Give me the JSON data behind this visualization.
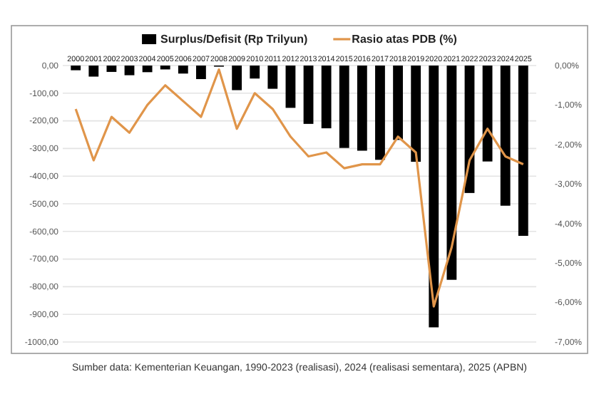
{
  "chart_data": {
    "type": "bar",
    "categories": [
      "2000",
      "2001",
      "2002",
      "2003",
      "2004",
      "2005",
      "2006",
      "2007",
      "2008",
      "2009",
      "2010",
      "2011",
      "2012",
      "2013",
      "2014",
      "2015",
      "2016",
      "2017",
      "2018",
      "2019",
      "2020",
      "2021",
      "2022",
      "2023",
      "2024",
      "2025"
    ],
    "series": [
      {
        "name": "Surplus/Defisit (Rp Trilyun)",
        "color": "#000000",
        "values": [
          -17,
          -40,
          -23,
          -35,
          -24,
          -14,
          -29,
          -49,
          -4,
          -89,
          -47,
          -84,
          -153,
          -211,
          -227,
          -298,
          -308,
          -341,
          -269,
          -348,
          -947,
          -775,
          -461,
          -347,
          -507,
          -616
        ]
      },
      {
        "name": "Rasio atas PDB (%)",
        "type": "line",
        "axis": "y2",
        "color": "#e0954a",
        "values": [
          -1.1,
          -2.4,
          -1.3,
          -1.7,
          -1.0,
          -0.5,
          -0.9,
          -1.3,
          -0.1,
          -1.6,
          -0.7,
          -1.1,
          -1.8,
          -2.3,
          -2.2,
          -2.6,
          -2.5,
          -2.5,
          -1.8,
          -2.2,
          -6.1,
          -4.6,
          -2.4,
          -1.6,
          -2.3,
          -2.5
        ]
      }
    ],
    "ylim": [
      -1000,
      0
    ],
    "yticks": [
      {
        "value": 0,
        "label": "0,00"
      },
      {
        "value": -100,
        "label": "-100,00"
      },
      {
        "value": -200,
        "label": "-200,00"
      },
      {
        "value": -300,
        "label": "-300,00"
      },
      {
        "value": -400,
        "label": "-400,00"
      },
      {
        "value": -500,
        "label": "-500,00"
      },
      {
        "value": -600,
        "label": "-600,00"
      },
      {
        "value": -700,
        "label": "-700,00"
      },
      {
        "value": -800,
        "label": "-800,00"
      },
      {
        "value": -900,
        "label": "-900,00"
      },
      {
        "value": -1000,
        "label": "-1000,00"
      }
    ],
    "y2lim": [
      -7,
      0
    ],
    "y2ticks": [
      {
        "value": 0,
        "label": "0,00%"
      },
      {
        "value": -1,
        "label": "-1,00%"
      },
      {
        "value": -2,
        "label": "-2,00%"
      },
      {
        "value": -3,
        "label": "-3,00%"
      },
      {
        "value": -4,
        "label": "-4,00%"
      },
      {
        "value": -5,
        "label": "-5,00%"
      },
      {
        "value": -6,
        "label": "-6,00%"
      },
      {
        "value": -7,
        "label": "-7,00%"
      }
    ],
    "grid": "y",
    "legend": "top",
    "marker": "none",
    "line_style": "solid",
    "annotations": [
      "Sumber data: Kementerian Keuangan, 1990-2023 (realisasi), 2024 (realisasi sementara), 2025 (APBN)"
    ]
  }
}
